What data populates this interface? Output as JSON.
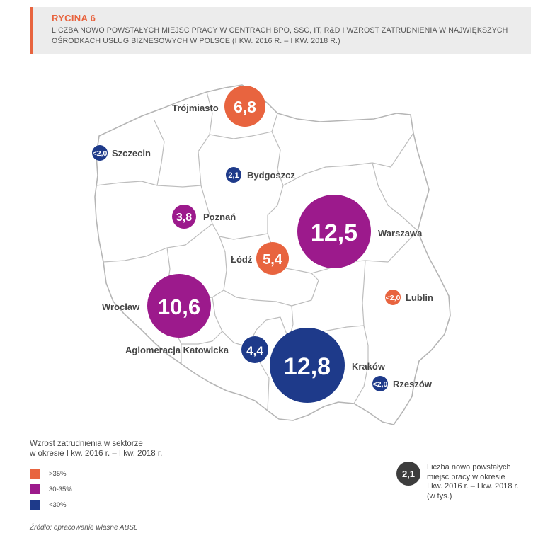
{
  "header": {
    "figure_label": "RYCINA 6",
    "title_line1": "LICZBA NOWO POWSTAŁYCH MIEJSC PRACY W CENTRACH BPO, SSC, IT, R&D I WZROST ZATRUDNIENIA W NAJWIĘKSZYCH",
    "title_line2": "OŚRODKACH USŁUG BIZNESOWYCH W POLSCE (I KW. 2016 R. – I KW. 2018 R.)"
  },
  "colors": {
    "high": "#e8643f",
    "mid": "#9c1a8c",
    "low": "#1e3a8a",
    "legend_bubble": "#3d3d3d",
    "accent": "#e8643f"
  },
  "cities": [
    {
      "name": "Trójmiasto",
      "value": "6,8",
      "category": "high"
    },
    {
      "name": "Szczecin",
      "value": "<2,0",
      "category": "low"
    },
    {
      "name": "Bydgoszcz",
      "value": "2,1",
      "category": "low"
    },
    {
      "name": "Poznań",
      "value": "3,8",
      "category": "mid"
    },
    {
      "name": "Warszawa",
      "value": "12,5",
      "category": "mid"
    },
    {
      "name": "Łódź",
      "value": "5,4",
      "category": "high"
    },
    {
      "name": "Lublin",
      "value": "<2,0",
      "category": "high"
    },
    {
      "name": "Wrocław",
      "value": "10,6",
      "category": "mid"
    },
    {
      "name": "Aglomeracja Katowicka",
      "value": "4,4",
      "category": "low"
    },
    {
      "name": "Kraków",
      "value": "12,8",
      "category": "low"
    },
    {
      "name": "Rzeszów",
      "value": "<2,0",
      "category": "low"
    }
  ],
  "legend": {
    "title_line1": "Wzrost zatrudnienia w sektorze",
    "title_line2": "w okresie I kw. 2016 r. – I kw. 2018 r.",
    "items": [
      {
        "label": ">35%",
        "category": "high"
      },
      {
        "label": "30-35%",
        "category": "mid"
      },
      {
        "label": "<30%",
        "category": "low"
      }
    ],
    "bubble_example": "2,1",
    "bubble_text_line1": "Liczba nowo powstałych",
    "bubble_text_line2": "miejsc pracy w okresie",
    "bubble_text_line3": "I kw. 2016 r. – I kw. 2018 r.",
    "bubble_text_line4": "(w tys.)"
  },
  "source": "Źródło: opracowanie własne ABSL"
}
